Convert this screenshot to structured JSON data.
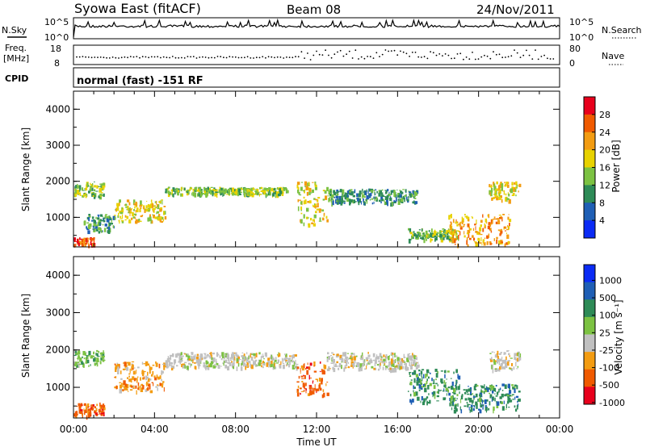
{
  "header": {
    "title": "Syowa East (fitACF)",
    "beam": "Beam 08",
    "date": "24/Nov/2011"
  },
  "top_panels": {
    "nsky_label": "N.Sky",
    "nsky_ticks": [
      "10^5",
      "10^0"
    ],
    "nsearch_label": "N.Search",
    "nsearch_ticks": [
      "10^5",
      "10^0"
    ],
    "freq_label": "Freq.",
    "freq_unit": "[MHz]",
    "freq_ticks": [
      "18",
      "8"
    ],
    "nave_label": "Nave",
    "nave_ticks": [
      "80",
      "0"
    ],
    "cpid_label": "CPID",
    "cpid_value": "normal (fast) -151 RF"
  },
  "chart_data": [
    {
      "type": "heatmap",
      "name": "power",
      "ylabel": "Slant Range [km]",
      "ylim": [
        180,
        4500
      ],
      "yticks": [
        "4000",
        "3000",
        "2000",
        "1000"
      ],
      "xlim": [
        0,
        24
      ],
      "colorbar_label": "Power [dB]",
      "colorbar_ticks": [
        "28",
        "24",
        "20",
        "16",
        "12",
        "8",
        "4"
      ],
      "colorbar_colors": [
        "#e8001c",
        "#f05a00",
        "#f39c12",
        "#e8d200",
        "#7cc242",
        "#2e8b57",
        "#1f5fb5",
        "#0b2bf5"
      ],
      "regions": [
        {
          "t": [
            0.0,
            1.5
          ],
          "r": [
            1600,
            2000
          ],
          "level": 12
        },
        {
          "t": [
            0.0,
            1.0
          ],
          "r": [
            250,
            450
          ],
          "level": 24
        },
        {
          "t": [
            0.5,
            2.0
          ],
          "r": [
            600,
            1100
          ],
          "level": 8
        },
        {
          "t": [
            2.0,
            4.5
          ],
          "r": [
            900,
            1500
          ],
          "level": 16
        },
        {
          "t": [
            4.5,
            10.5
          ],
          "r": [
            1650,
            1850
          ],
          "level": 12
        },
        {
          "t": [
            11.0,
            12.5
          ],
          "r": [
            800,
            2000
          ],
          "level": 16
        },
        {
          "t": [
            12.5,
            17.0
          ],
          "r": [
            1400,
            1800
          ],
          "level": 8
        },
        {
          "t": [
            16.5,
            19.0
          ],
          "r": [
            400,
            700
          ],
          "level": 12
        },
        {
          "t": [
            18.5,
            21.5
          ],
          "r": [
            250,
            1100
          ],
          "level": 20
        },
        {
          "t": [
            20.5,
            22.0
          ],
          "r": [
            1500,
            2000
          ],
          "level": 16
        }
      ]
    },
    {
      "type": "heatmap",
      "name": "velocity",
      "ylabel": "Slant Range [km]",
      "ylim": [
        180,
        4500
      ],
      "yticks": [
        "4000",
        "3000",
        "2000",
        "1000"
      ],
      "xlim": [
        0,
        24
      ],
      "xlabel": "Time UT",
      "xticks": [
        "00:00",
        "04:00",
        "08:00",
        "12:00",
        "16:00",
        "20:00",
        "00:00"
      ],
      "colorbar_label": "Velocity [m s⁻¹]",
      "colorbar_ticks": [
        "1000",
        "500",
        "100",
        "25",
        "-25",
        "-100",
        "-500",
        "-1000"
      ],
      "colorbar_colors": [
        "#0b2bf5",
        "#1f5fb5",
        "#2e8b57",
        "#7cc242",
        "#c0c0c0",
        "#f39c12",
        "#f05a00",
        "#e8001c"
      ],
      "regions": [
        {
          "t": [
            0.0,
            1.5
          ],
          "r": [
            1600,
            2000
          ],
          "level": 25
        },
        {
          "t": [
            0.0,
            1.5
          ],
          "r": [
            250,
            600
          ],
          "level": -500
        },
        {
          "t": [
            2.0,
            4.5
          ],
          "r": [
            900,
            1700
          ],
          "level": -100
        },
        {
          "t": [
            4.5,
            11.0
          ],
          "r": [
            1550,
            1950
          ],
          "level": 0
        },
        {
          "t": [
            11.0,
            12.5
          ],
          "r": [
            800,
            1700
          ],
          "level": -500
        },
        {
          "t": [
            12.5,
            17.0
          ],
          "r": [
            1500,
            1950
          ],
          "level": 0
        },
        {
          "t": [
            16.5,
            19.0
          ],
          "r": [
            600,
            1500
          ],
          "level": 100
        },
        {
          "t": [
            18.5,
            22.0
          ],
          "r": [
            400,
            1100
          ],
          "level": 100
        },
        {
          "t": [
            20.5,
            22.0
          ],
          "r": [
            1500,
            2000
          ],
          "level": 0
        }
      ]
    }
  ]
}
